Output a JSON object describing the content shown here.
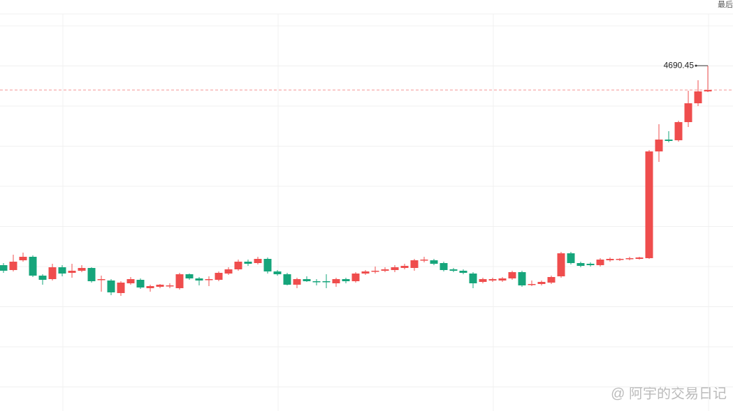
{
  "chart_data": {
    "type": "candlestick",
    "last_price_label": "最后",
    "watermark": "@ 阿宇的交易日记",
    "up_color": "#ef4d4d",
    "down_color": "#16a57b",
    "ylim": [
      4443,
      4737.5
    ],
    "grid": true,
    "open": [
      4547.5,
      4544,
      4551,
      4553.5,
      4540,
      4537.5,
      4546,
      4542,
      4543.5,
      4545.5,
      4537,
      4536.5,
      4527.5,
      4534.5,
      4537,
      4531,
      4532,
      4532.5,
      4531,
      4541,
      4538,
      4537,
      4537,
      4541.5,
      4544.5,
      4550,
      4549,
      4552,
      4543,
      4541,
      4533.5,
      4537.5,
      4536,
      4536,
      4534.5,
      4537.5,
      4536,
      4541.5,
      4543,
      4543.5,
      4544,
      4545.5,
      4545.5,
      4551,
      4551,
      4549,
      4544.5,
      4543.5,
      4541.5,
      4535.5,
      4536.5,
      4536.5,
      4538,
      4542.5,
      4533.5,
      4534,
      4535,
      4539.5,
      4556,
      4549,
      4548.5,
      4547.5,
      4551,
      4551.5,
      4552,
      4552,
      4552.5,
      4629,
      4637.5,
      4637,
      4650,
      4663.5,
      4672
    ],
    "high": [
      4549,
      4555,
      4556.5,
      4554.5,
      4541,
      4548.5,
      4547.5,
      4548.5,
      4547.5,
      4546,
      4540,
      4537.5,
      4536,
      4539,
      4538,
      4533.5,
      4534,
      4534.5,
      4542,
      4541.5,
      4539,
      4539.5,
      4543,
      4546,
      4551.5,
      4551.5,
      4553.5,
      4553,
      4544,
      4542,
      4538.5,
      4539.5,
      4537.5,
      4541,
      4538.5,
      4538.5,
      4542.5,
      4544,
      4546.5,
      4546,
      4547.5,
      4548.5,
      4552,
      4553.5,
      4552,
      4550,
      4545.5,
      4544.5,
      4542.5,
      4538.5,
      4538.5,
      4539,
      4543.5,
      4543.5,
      4536.5,
      4536.5,
      4540,
      4557,
      4557,
      4550,
      4549.5,
      4552.5,
      4553,
      4552.5,
      4553.5,
      4553.5,
      4630,
      4648.5,
      4643.5,
      4651,
      4672.5,
      4680,
      4690.45
    ],
    "low": [
      4542,
      4543,
      4550,
      4539,
      4533.5,
      4536.5,
      4539.5,
      4538.5,
      4542.5,
      4535,
      4528.5,
      4526,
      4525.5,
      4533.5,
      4530.5,
      4528.5,
      4531,
      4531,
      4530,
      4537,
      4533,
      4532.5,
      4536,
      4540.5,
      4543.5,
      4547,
      4548,
      4541.5,
      4540,
      4533,
      4531,
      4535.5,
      4533,
      4531,
      4532,
      4534.5,
      4535,
      4540.5,
      4541.5,
      4542.5,
      4542.5,
      4544.5,
      4543.5,
      4549.5,
      4547.5,
      4543,
      4542.5,
      4541,
      4531,
      4534.5,
      4535.5,
      4535.5,
      4537,
      4532,
      4532.5,
      4533,
      4534,
      4538.5,
      4548,
      4546,
      4546.5,
      4546.5,
      4550,
      4550.5,
      4551,
      4551.5,
      4552,
      4621.5,
      4635.5,
      4636,
      4646.5,
      4661.5,
      4671.5
    ],
    "close": [
      4543.5,
      4550,
      4553.5,
      4540,
      4537,
      4546,
      4541.5,
      4543.5,
      4545.5,
      4536,
      4537.5,
      4528,
      4535,
      4537.5,
      4531.5,
      4532.5,
      4533.5,
      4533,
      4541,
      4538,
      4536.5,
      4537.5,
      4542,
      4544.5,
      4550,
      4548.5,
      4552,
      4543,
      4541,
      4533.5,
      4537.5,
      4536,
      4535.5,
      4535.5,
      4537.5,
      4536,
      4541.5,
      4543,
      4543.5,
      4544.5,
      4546,
      4547,
      4551,
      4551.5,
      4548.5,
      4544,
      4543.5,
      4542,
      4534.5,
      4537.5,
      4537.5,
      4538,
      4542.5,
      4533,
      4534,
      4535.5,
      4539,
      4556,
      4549,
      4547,
      4547.5,
      4551.5,
      4552,
      4552,
      4552.5,
      4553,
      4629,
      4637.5,
      4636.5,
      4650,
      4663.5,
      4672,
      4673
    ]
  }
}
